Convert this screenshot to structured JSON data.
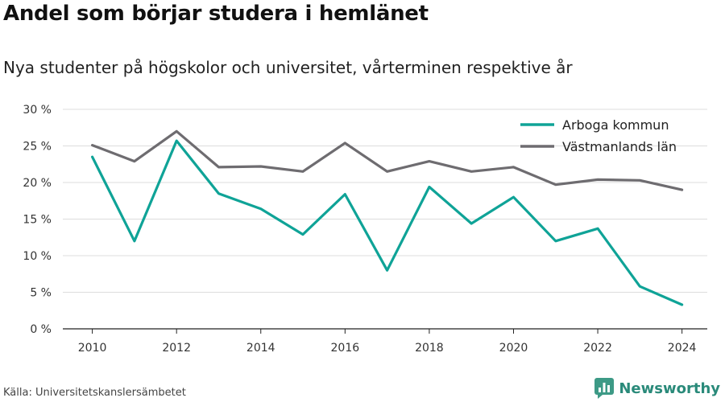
{
  "title": "Andel som börjar studera i hemlänet",
  "subtitle": "Nya studenter på högskolor och universitet, vårterminen respektive år",
  "source": "Källa: Universitetskanslersämbetet",
  "brand": {
    "name": "Newsworthy",
    "icon": "bar-chart-logo-icon",
    "color": "#3d9a86"
  },
  "chart_data": {
    "type": "line",
    "x": [
      2010,
      2011,
      2012,
      2013,
      2014,
      2015,
      2016,
      2017,
      2018,
      2019,
      2020,
      2021,
      2022,
      2023,
      2024
    ],
    "x_ticks": [
      2010,
      2012,
      2014,
      2016,
      2018,
      2020,
      2022,
      2024
    ],
    "ylim": [
      0,
      30
    ],
    "y_ticks": [
      0,
      5,
      10,
      15,
      20,
      25,
      30
    ],
    "y_tick_labels": [
      "0 %",
      "5 %",
      "10 %",
      "15 %",
      "20 %",
      "25 %",
      "30 %"
    ],
    "grid": true,
    "legend_position": "top-right",
    "series": [
      {
        "name": "Arboga kommun",
        "color": "#0fa397",
        "values": [
          23.5,
          12.0,
          25.7,
          18.5,
          16.4,
          12.9,
          18.4,
          8.0,
          19.4,
          14.4,
          18.0,
          12.0,
          13.7,
          5.8,
          3.3
        ]
      },
      {
        "name": "Västmanlands län",
        "color": "#6e6c70",
        "values": [
          25.1,
          22.9,
          27.0,
          22.1,
          22.2,
          21.5,
          25.4,
          21.5,
          22.9,
          21.5,
          22.1,
          19.7,
          20.4,
          20.3,
          19.0
        ]
      }
    ]
  }
}
